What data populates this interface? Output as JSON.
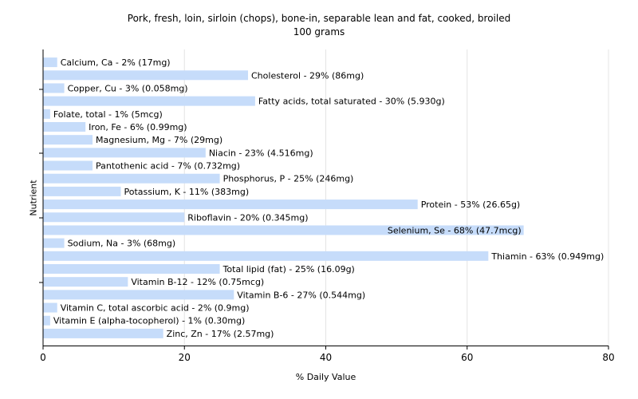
{
  "chart_data": {
    "type": "bar",
    "orientation": "horizontal",
    "title": "Pork, fresh, loin, sirloin (chops), bone-in, separable lean and fat, cooked, broiled",
    "subtitle": "100 grams",
    "xlabel": "% Daily Value",
    "ylabel": "Nutrient",
    "xlim": [
      0,
      80
    ],
    "xticks": [
      0,
      20,
      40,
      60,
      80
    ],
    "grid": true,
    "bar_color": "#c6dcfa",
    "categories": [
      "Calcium, Ca - 2% (17mg)",
      "Cholesterol - 29% (86mg)",
      "Copper, Cu - 3% (0.058mg)",
      "Fatty acids, total saturated - 30% (5.930g)",
      "Folate, total - 1% (5mcg)",
      "Iron, Fe - 6% (0.99mg)",
      "Magnesium, Mg - 7% (29mg)",
      "Niacin - 23% (4.516mg)",
      "Pantothenic acid - 7% (0.732mg)",
      "Phosphorus, P - 25% (246mg)",
      "Potassium, K - 11% (383mg)",
      "Protein - 53% (26.65g)",
      "Riboflavin - 20% (0.345mg)",
      "Selenium, Se - 68% (47.7mcg)",
      "Sodium, Na - 3% (68mg)",
      "Thiamin - 63% (0.949mg)",
      "Total lipid (fat) - 25% (16.09g)",
      "Vitamin B-12 - 12% (0.75mcg)",
      "Vitamin B-6 - 27% (0.544mg)",
      "Vitamin C, total ascorbic acid - 2% (0.9mg)",
      "Vitamin E (alpha-tocopherol) - 1% (0.30mg)",
      "Zinc, Zn - 17% (2.57mg)"
    ],
    "values": [
      2,
      29,
      3,
      30,
      1,
      6,
      7,
      23,
      7,
      25,
      11,
      53,
      20,
      68,
      3,
      63,
      25,
      12,
      27,
      2,
      1,
      17
    ]
  }
}
